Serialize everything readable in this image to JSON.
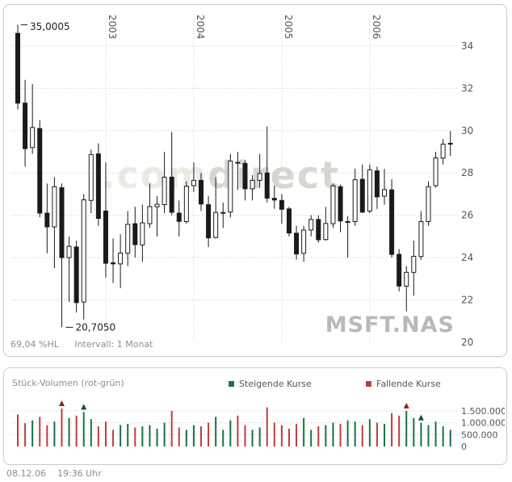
{
  "price_panel": {
    "high_label": "35,0005",
    "low_label": "20,7050",
    "footer_left": "69,04 %HL",
    "footer_interval": "Intervall: 1 Monat",
    "watermark_light": ".com",
    "watermark_dark": "direct",
    "symbol_watermark": "MSFT.NAS"
  },
  "volume_panel": {
    "title": "Stück-Volumen (rot-grün)",
    "legend": [
      {
        "label": "Steigende Kurse",
        "color": "#177245"
      },
      {
        "label": "Fallende Kurse",
        "color": "#c23b3b"
      }
    ],
    "y_tick_labels": [
      "1.500.000",
      "1.000.000",
      "500.000",
      "0"
    ],
    "y_tick_values": [
      1500000,
      1000000,
      500000,
      0
    ]
  },
  "footer": {
    "date": "08.12.06",
    "time": "19:36 Uhr"
  },
  "colors": {
    "grid": "#cccccc",
    "axis_text": "#555555",
    "candle": "#1a1a1a",
    "up": "#177245",
    "down": "#c23b3b",
    "up_dark": "#0f5132",
    "down_dark": "#8b2020"
  },
  "chart_data": [
    {
      "type": "candlestick",
      "symbol": "MSFT.NAS",
      "interval": "1 Monat",
      "start_month": "2002-01",
      "end_month": "2006-12",
      "percent_hl": "69,04 %HL",
      "ylim": [
        20,
        35.2
      ],
      "y_ticks": [
        34,
        32,
        30,
        28,
        26,
        24,
        22,
        20
      ],
      "year_labels": [
        "2003",
        "2004",
        "2005",
        "2006"
      ],
      "year_start_indices": [
        12,
        24,
        36,
        48
      ],
      "high_annotation": {
        "value": 35.0005,
        "index": 0,
        "label": "35,0005"
      },
      "low_annotation": {
        "value": 20.705,
        "index": 6,
        "label": "20,7050"
      },
      "ohlc": [
        [
          34.6,
          35.0005,
          31.0,
          31.3
        ],
        [
          31.3,
          32.4,
          28.3,
          29.15
        ],
        [
          29.2,
          32.2,
          28.9,
          30.15
        ],
        [
          30.1,
          30.5,
          25.9,
          26.1
        ],
        [
          26.1,
          27.5,
          24.2,
          25.45
        ],
        [
          25.45,
          27.8,
          23.5,
          27.35
        ],
        [
          27.3,
          27.5,
          20.705,
          24.0
        ],
        [
          24.0,
          25.0,
          21.9,
          24.53
        ],
        [
          24.5,
          24.8,
          21.4,
          21.87
        ],
        [
          21.9,
          27.0,
          21.07,
          26.73
        ],
        [
          26.7,
          29.1,
          26.1,
          28.87
        ],
        [
          28.9,
          29.4,
          25.5,
          25.85
        ],
        [
          26.2,
          28.5,
          23.05,
          23.73
        ],
        [
          23.75,
          24.9,
          22.8,
          23.7
        ],
        [
          23.7,
          25.1,
          22.55,
          24.21
        ],
        [
          24.2,
          26.2,
          23.6,
          25.57
        ],
        [
          25.6,
          26.4,
          24.0,
          24.61
        ],
        [
          24.6,
          26.5,
          23.8,
          25.64
        ],
        [
          25.6,
          27.5,
          25.4,
          26.41
        ],
        [
          26.4,
          26.9,
          25.0,
          26.52
        ],
        [
          26.5,
          29.0,
          26.1,
          27.8
        ],
        [
          27.8,
          29.94,
          26.0,
          26.14
        ],
        [
          26.1,
          26.7,
          25.0,
          25.71
        ],
        [
          25.7,
          27.6,
          25.6,
          27.37
        ],
        [
          27.4,
          28.5,
          27.1,
          27.65
        ],
        [
          27.65,
          28.0,
          26.2,
          26.53
        ],
        [
          26.5,
          26.9,
          24.5,
          24.93
        ],
        [
          24.95,
          27.8,
          24.9,
          26.13
        ],
        [
          26.1,
          26.6,
          25.4,
          26.13
        ],
        [
          26.15,
          28.9,
          25.9,
          28.56
        ],
        [
          28.5,
          29.0,
          27.2,
          28.49
        ],
        [
          28.45,
          28.6,
          26.7,
          27.25
        ],
        [
          27.25,
          27.9,
          26.7,
          27.65
        ],
        [
          27.65,
          28.9,
          27.3,
          27.97
        ],
        [
          28.0,
          30.2,
          26.6,
          26.81
        ],
        [
          26.8,
          27.4,
          26.3,
          26.72
        ],
        [
          26.7,
          27.0,
          25.6,
          26.28
        ],
        [
          26.3,
          26.4,
          25.0,
          25.16
        ],
        [
          25.15,
          25.5,
          23.9,
          24.17
        ],
        [
          24.2,
          25.5,
          23.8,
          25.3
        ],
        [
          25.3,
          26.0,
          25.0,
          25.8
        ],
        [
          25.8,
          26.0,
          24.7,
          24.84
        ],
        [
          24.85,
          26.4,
          24.8,
          25.61
        ],
        [
          25.6,
          27.5,
          25.4,
          27.39
        ],
        [
          27.35,
          27.45,
          25.2,
          25.73
        ],
        [
          25.7,
          25.95,
          24.0,
          25.7
        ],
        [
          25.7,
          28.2,
          25.5,
          27.68
        ],
        [
          27.7,
          28.4,
          26.1,
          26.15
        ],
        [
          26.2,
          28.4,
          26.1,
          28.15
        ],
        [
          28.1,
          28.3,
          26.3,
          26.87
        ],
        [
          26.9,
          28.2,
          26.5,
          27.21
        ],
        [
          27.2,
          27.7,
          24.0,
          24.15
        ],
        [
          24.15,
          24.4,
          22.4,
          22.65
        ],
        [
          22.65,
          23.6,
          21.46,
          23.3
        ],
        [
          23.3,
          24.8,
          22.2,
          24.06
        ],
        [
          24.05,
          26.2,
          23.9,
          25.7
        ],
        [
          25.7,
          27.6,
          25.5,
          27.35
        ],
        [
          27.4,
          29.0,
          27.3,
          28.71
        ],
        [
          28.7,
          29.6,
          28.4,
          29.36
        ],
        [
          29.4,
          29.98,
          28.8,
          29.4
        ]
      ]
    },
    {
      "type": "bar",
      "name": "Stück-Volumen",
      "ylim": [
        0,
        1750000
      ],
      "color_rule": "green if monthly close >= open, red otherwise",
      "values": [
        1350000,
        980000,
        1100000,
        1250000,
        900000,
        1050000,
        1600000,
        1200000,
        1300000,
        1450000,
        1150000,
        850000,
        1050000,
        700000,
        900000,
        950000,
        800000,
        850000,
        900000,
        750000,
        1000000,
        1500000,
        800000,
        700000,
        900000,
        850000,
        1000000,
        1250000,
        700000,
        1100000,
        1300000,
        900000,
        700000,
        800000,
        1650000,
        1000000,
        900000,
        750000,
        950000,
        1200000,
        700000,
        850000,
        900000,
        1000000,
        950000,
        1100000,
        1050000,
        900000,
        1150000,
        1000000,
        950000,
        1400000,
        1300000,
        1500000,
        1200000,
        1000000,
        900000,
        1050000,
        850000,
        700000
      ],
      "markers": [
        {
          "index": 6,
          "shape": "arrow-up",
          "color": "red"
        },
        {
          "index": 9,
          "shape": "arrow-up",
          "color": "green"
        },
        {
          "index": 53,
          "shape": "arrow-up",
          "color": "red"
        },
        {
          "index": 55,
          "shape": "arrow-up",
          "color": "green"
        }
      ]
    }
  ]
}
